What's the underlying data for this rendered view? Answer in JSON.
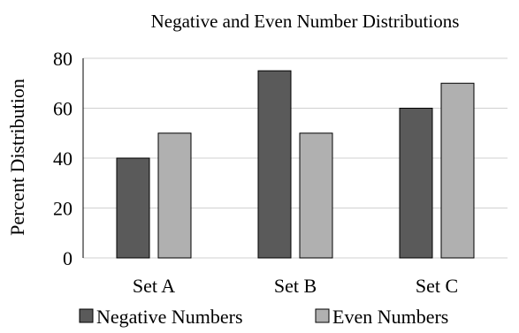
{
  "chart_data": {
    "type": "bar",
    "title": "Negative and Even Number Distributions",
    "xlabel": "",
    "ylabel": "Percent Distribution",
    "categories": [
      "Set A",
      "Set B",
      "Set C"
    ],
    "series": [
      {
        "name": "Negative Numbers",
        "values": [
          40,
          75,
          60
        ],
        "color": "#5a5a5a"
      },
      {
        "name": "Even Numbers",
        "values": [
          50,
          50,
          70
        ],
        "color": "#b0b0b0"
      }
    ],
    "ylim": [
      0,
      80
    ],
    "yticks": [
      0,
      20,
      40,
      60,
      80
    ],
    "grid": true,
    "legend_position": "bottom"
  }
}
